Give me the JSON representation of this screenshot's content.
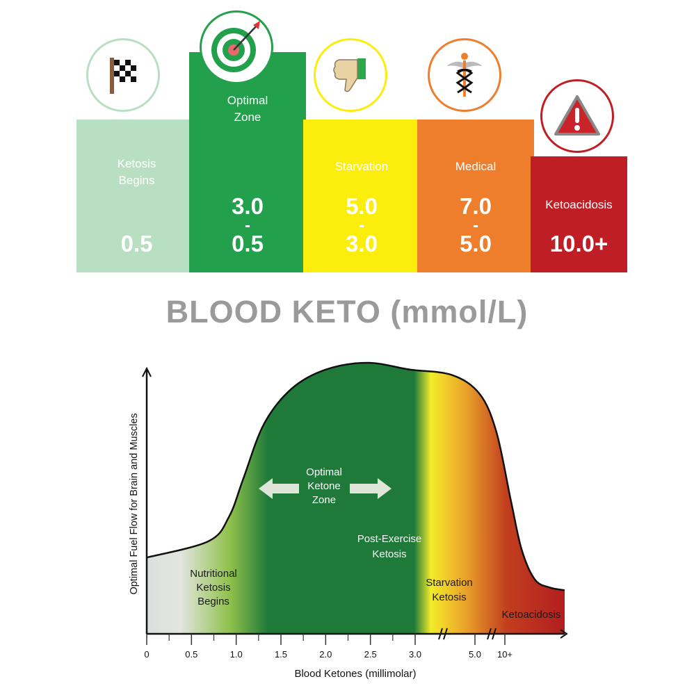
{
  "cards": [
    {
      "label": "Ketosis Begins",
      "value": "0.5",
      "value_top": "",
      "color": "#b8dfc2",
      "icon": "checkered-flag-icon"
    },
    {
      "label": "Optimal Zone",
      "value_top": "3.0",
      "dash": "-",
      "value": "0.5",
      "color": "#23a04b",
      "icon": "target-arrow-icon"
    },
    {
      "label": "Starvation",
      "value_top": "5.0",
      "dash": "-",
      "value": "3.0",
      "color": "#fcee0c",
      "icon": "thumbs-down-icon"
    },
    {
      "label": "Medical",
      "value_top": "7.0",
      "dash": "-",
      "value": "5.0",
      "color": "#ee7e2c",
      "icon": "caduceus-icon"
    },
    {
      "label": "Ketoacidosis",
      "value": "10.0+",
      "value_top": "",
      "color": "#bf1e24",
      "icon": "warning-triangle-icon"
    }
  ],
  "title": "BLOOD KETO (mmol/L)",
  "chart_data": {
    "type": "area",
    "xlabel": "Blood Ketones (millimolar)",
    "ylabel": "Optimal Fuel Flow for Brain and Muscles",
    "x_ticks": [
      "0",
      "0.5",
      "1.0",
      "1.5",
      "2.0",
      "2.5",
      "3.0",
      "5.0",
      "10+"
    ],
    "x_axis_breaks": [
      "between 3.0 and 5.0",
      "between 5.0 and 10+"
    ],
    "grid": false,
    "curve": {
      "x": [
        0,
        0.69,
        0.92,
        1.08,
        1.31,
        1.62,
        2.0,
        2.47,
        2.94,
        4.23,
        5.8,
        8.6,
        10.2,
        10.56,
        11.0,
        11.5,
        12
      ],
      "y": [
        28,
        34,
        43,
        57,
        77,
        90,
        97,
        99.5,
        97,
        95,
        88,
        74,
        49,
        31,
        20,
        17,
        16
      ]
    },
    "zones": [
      {
        "name": "Nutritional Ketosis Begins",
        "color": "#d9dcdc"
      },
      {
        "name": "Optimal Ketone Zone",
        "color": "#1f7a3a"
      },
      {
        "name": "Post-Exercise Ketosis",
        "color": "#1f7a3a"
      },
      {
        "name": "Starvation Ketosis",
        "color": "#f3e620"
      },
      {
        "name": "Ketoacidosis",
        "color": "#b5201f"
      }
    ],
    "annotations": {
      "nutritional": [
        "Nutritional",
        "Ketosis",
        "Begins"
      ],
      "optimal": [
        "Optimal",
        "Ketone",
        "Zone"
      ],
      "post_exercise": [
        "Post-Exercise",
        "Ketosis"
      ],
      "starvation": [
        "Starvation",
        "Ketosis"
      ],
      "ketoacidosis": "Ketoacidosis"
    }
  }
}
